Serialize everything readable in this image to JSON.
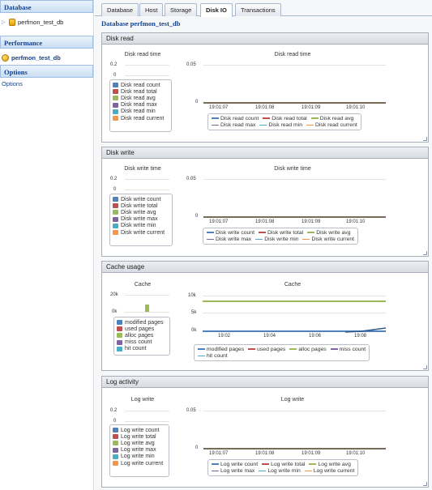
{
  "sidebar": {
    "database_header": "Database",
    "database_name": "perfmon_test_db",
    "performance_header": "Performance",
    "performance_db": "perfmon_test_db",
    "options_header": "Options",
    "options_link": "Options"
  },
  "tabs": [
    "Database",
    "Host",
    "Storage",
    "Disk IO",
    "Transactions"
  ],
  "active_tab": "Disk IO",
  "page_title": "Database perfmon_test_db",
  "colors": {
    "count": "#4f81bd",
    "total": "#c0504d",
    "avg": "#9bbb59",
    "max": "#8064a2",
    "min": "#4bacc6",
    "current": "#f79646",
    "flat_line": "#7a6a58"
  },
  "panels": {
    "disk_read": {
      "title": "Disk read",
      "small_title": "Disk read time",
      "small_ticks": [
        "0.2",
        "0"
      ],
      "big_title": "Disk read time",
      "big_ticks": [
        "0.05",
        "0"
      ],
      "x_ticks": [
        "19:01:07",
        "19:01:08",
        "19:01:09",
        "19:01:10"
      ],
      "legend": [
        "Disk read count",
        "Disk read total",
        "Disk read avg",
        "Disk read max",
        "Disk read min",
        "Disk read current"
      ]
    },
    "disk_write": {
      "title": "Disk write",
      "small_title": "Disk write time",
      "small_ticks": [
        "0.2",
        "0"
      ],
      "big_title": "Disk write time",
      "big_ticks": [
        "0.05",
        "0"
      ],
      "x_ticks": [
        "19:01:07",
        "19:01:08",
        "19:01:09",
        "19:01:10"
      ],
      "legend": [
        "Disk write count",
        "Disk write total",
        "Disk write avg",
        "Disk write max",
        "Disk write min",
        "Disk write current"
      ]
    },
    "cache": {
      "title": "Cache usage",
      "small_title": "Cache",
      "small_ticks": [
        "20k",
        "0k"
      ],
      "big_title": "Cache",
      "big_ticks": [
        "10k",
        "5k",
        "0k"
      ],
      "x_ticks": [
        "19:02",
        "19:04",
        "19:06",
        "19:08"
      ],
      "legend": [
        "modified pages",
        "used pages",
        "alloc pages",
        "miss count",
        "hit count"
      ]
    },
    "log": {
      "title": "Log activity",
      "small_title": "Log write",
      "small_ticks": [
        "0.2",
        "0"
      ],
      "big_title": "Log write",
      "big_ticks": [
        "0.05",
        "0"
      ],
      "x_ticks": [
        "19:01:07",
        "19:01:08",
        "19:01:09",
        "19:01:10"
      ],
      "legend": [
        "Log write count",
        "Log write total",
        "Log write avg",
        "Log write max",
        "Log write min",
        "Log write current"
      ]
    }
  }
}
